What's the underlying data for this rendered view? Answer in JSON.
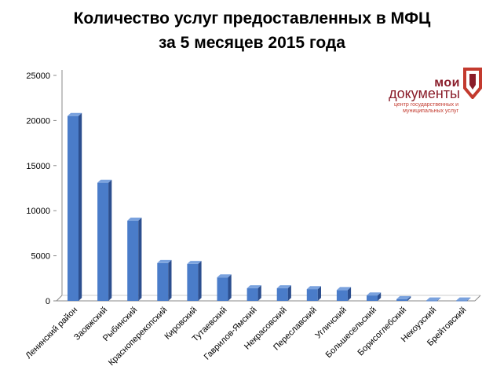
{
  "title_line1": "Количество услуг предоставленных в МФЦ",
  "title_line2": "за 5 месяцев 2015 года",
  "logo": {
    "line1": "мои",
    "line2": "документы",
    "sub": "центр государственных и муниципальных услуг"
  },
  "colors": {
    "bar_front": "#4a7cc9",
    "bar_side": "#2c4f8f",
    "bar_top": "#7aa2de",
    "axis": "#888888",
    "logo_dark": "#8a1d2a",
    "logo_red": "#c33a2e"
  },
  "chart_data": {
    "type": "bar",
    "categories": [
      "Ленинский район",
      "Заовжский",
      "Рыбинский",
      "Красноперекопский",
      "Кировский",
      "Тутаевский",
      "Гаврилов-Ямский",
      "Некрасовский",
      "Переславский",
      "Угличский",
      "Большесельский",
      "Борисоглебский",
      "Некоузский",
      "Брейтовский"
    ],
    "values": [
      20500,
      13100,
      8900,
      4200,
      4100,
      2600,
      1400,
      1400,
      1300,
      1200,
      600,
      200,
      50,
      50
    ],
    "ylim": [
      0,
      25000
    ],
    "yticks": [
      "0",
      "5000",
      "10000",
      "15000",
      "20000",
      "25000"
    ],
    "grid": false,
    "style": "3d"
  }
}
